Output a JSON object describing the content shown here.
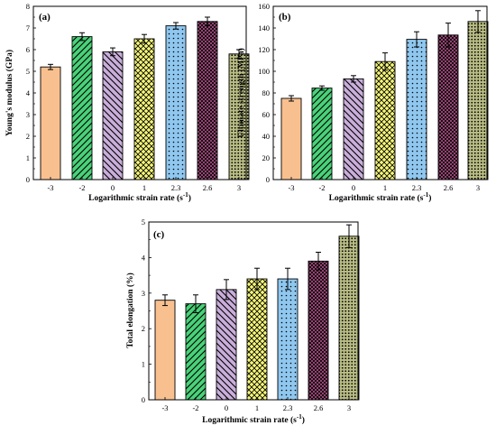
{
  "chart_data": [
    {
      "type": "bar",
      "panel_label": "(a)",
      "categories": [
        "-3",
        "-2",
        "0",
        "1",
        "2.3",
        "2.6",
        "3"
      ],
      "values": [
        5.2,
        6.6,
        5.9,
        6.5,
        7.1,
        7.3,
        5.8
      ],
      "errors": [
        0.12,
        0.18,
        0.18,
        0.2,
        0.15,
        0.2,
        0.2
      ],
      "xlabel": "Logarithmic strain rate (s",
      "xlabel_sup": "-1",
      "xlabel_end": ")",
      "ylabel": "Young's modulus (GPa)",
      "ylim": [
        0,
        8
      ],
      "yticks": [
        0,
        1,
        2,
        3,
        4,
        5,
        6,
        7,
        8
      ],
      "grid": false
    },
    {
      "type": "bar",
      "panel_label": "(b)",
      "categories": [
        "-3",
        "-2",
        "0",
        "1",
        "2.3",
        "2.6",
        "3"
      ],
      "values": [
        75,
        84.5,
        93,
        109,
        129.5,
        133.5,
        146
      ],
      "errors": [
        2.5,
        2,
        3,
        8,
        7,
        11,
        10
      ],
      "xlabel": "Logarithmic strain rate (s",
      "xlabel_sup": "-1",
      "xlabel_end": ")",
      "ylabel": "Ultimate strength (MPa)",
      "ylim": [
        0,
        160
      ],
      "yticks": [
        0,
        20,
        40,
        60,
        80,
        100,
        120,
        140,
        160
      ],
      "grid": false
    },
    {
      "type": "bar",
      "panel_label": "(c)",
      "categories": [
        "-3",
        "-2",
        "0",
        "1",
        "2.3",
        "2.6",
        "3"
      ],
      "values": [
        2.8,
        2.7,
        3.1,
        3.4,
        3.4,
        3.9,
        4.6
      ],
      "errors": [
        0.15,
        0.25,
        0.28,
        0.3,
        0.3,
        0.25,
        0.32
      ],
      "xlabel": "Logarithmic strain rate (s",
      "xlabel_sup": "-1",
      "xlabel_end": ")",
      "ylabel": "Total elongation (%)",
      "ylim": [
        0,
        5
      ],
      "yticks": [
        0,
        1,
        2,
        3,
        4,
        5
      ],
      "grid": false
    }
  ],
  "bar_colors": [
    "#f9c08f",
    "#49d279",
    "#c9aeda",
    "#f5f57a",
    "#8fc7ef",
    "#b9548f",
    "#b9bd84"
  ],
  "bar_patterns": [
    "solid",
    "diagonal-back",
    "diagonal-forward",
    "crosshatch-diagonal",
    "dots",
    "crosshatch-dense",
    "dots-dense"
  ]
}
